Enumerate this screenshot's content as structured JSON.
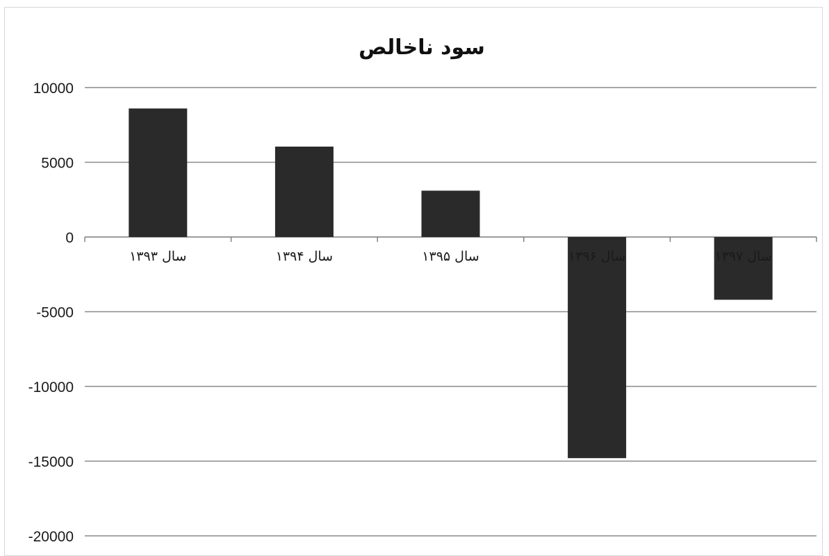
{
  "chart_data": {
    "type": "bar",
    "title": "سود ناخالص",
    "xlabel": "",
    "ylabel": "",
    "categories": [
      "سال ۱۳۹۳",
      "سال ۱۳۹۴",
      "سال ۱۳۹۵",
      "سال ۱۳۹۶",
      "سال ۱۳۹۷"
    ],
    "values": [
      8600,
      6050,
      3100,
      -14800,
      -4200
    ],
    "ylim": [
      -20000,
      10000
    ],
    "yticks": [
      "10000",
      "5000",
      "0",
      "-5000",
      "-10000",
      "-15000",
      "-20000"
    ],
    "grid": true,
    "legend": "none",
    "bar_color": "#2a2a2a"
  }
}
